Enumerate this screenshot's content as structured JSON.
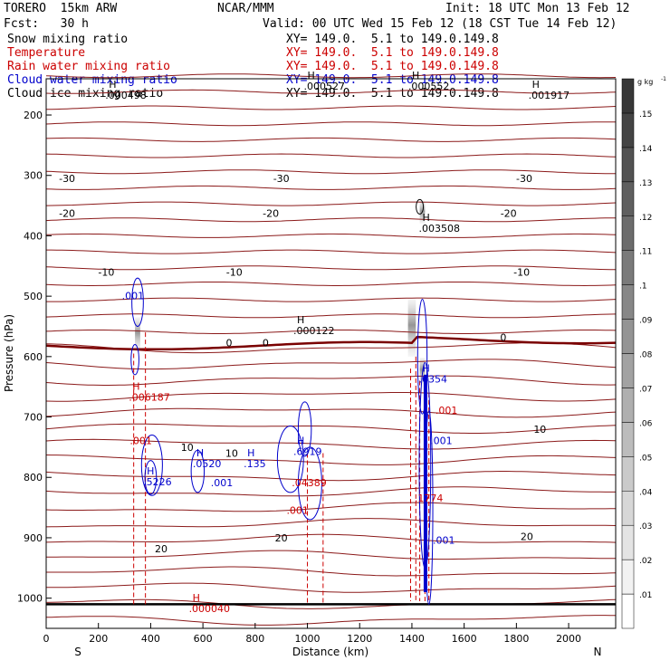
{
  "header": {
    "model": "TORERO  15km ARW",
    "center": "NCAR/MMM",
    "init": "Init: 18 UTC Mon 13 Feb 12",
    "fcst": "Fcst:   30 h",
    "valid": "Valid: 00 UTC Wed 15 Feb 12 (18 CST Tue 14 Feb 12)"
  },
  "legend": [
    {
      "name": "Snow mixing ratio",
      "xy": "XY= 149.0.  5.1 to 149.0.149.8",
      "color": "#000000"
    },
    {
      "name": "Temperature",
      "xy": "XY= 149.0.  5.1 to 149.0.149.8",
      "color": "#cc0000"
    },
    {
      "name": "Rain water mixing ratio",
      "xy": "XY= 149.0.  5.1 to 149.0.149.8",
      "color": "#cc0000"
    },
    {
      "name": "Cloud water mixing ratio",
      "xy": "XY= 149.0.  5.1 to 149.0.149.8",
      "color": "#0000cc"
    },
    {
      "name": "Cloud ice mixing ratio",
      "xy": "XY= 149.0.  5.1 to 149.0.149.8",
      "color": "#000000"
    }
  ],
  "colors": {
    "temperature": "#8b1a1a",
    "freezing": "#7a0000",
    "rain": "#cc0000",
    "cloud_water": "#0000cc",
    "label": "#000000"
  },
  "chart_data": {
    "type": "contour",
    "xlabel": "Distance (km)",
    "ylabel": "Pressure (hPa)",
    "xlim": [
      0,
      2180
    ],
    "ylim": [
      1050,
      140
    ],
    "x_ticks": [
      0,
      200,
      400,
      600,
      800,
      1000,
      1200,
      1400,
      1600,
      1800,
      2000
    ],
    "y_ticks": [
      200,
      300,
      400,
      500,
      600,
      700,
      800,
      900,
      1000
    ],
    "x_ends": {
      "left": "S",
      "right": "N"
    },
    "colorbar": {
      "unit": "g kg",
      "unit_exponent": "-1",
      "ticks": [
        ".01",
        ".02",
        ".03",
        ".04",
        ".05",
        ".06",
        ".07",
        ".08",
        ".09",
        ".1",
        ".11",
        ".12",
        ".13",
        ".14",
        ".15"
      ]
    },
    "temperature_labels": [
      {
        "label": "-30",
        "x": 80,
        "p": 305
      },
      {
        "label": "-30",
        "x": 900,
        "p": 305
      },
      {
        "label": "-30",
        "x": 1830,
        "p": 305
      },
      {
        "label": "-20",
        "x": 80,
        "p": 363
      },
      {
        "label": "-20",
        "x": 860,
        "p": 363
      },
      {
        "label": "-20",
        "x": 1770,
        "p": 363
      },
      {
        "label": "-10",
        "x": 230,
        "p": 460
      },
      {
        "label": "-10",
        "x": 720,
        "p": 460
      },
      {
        "label": "-10",
        "x": 1820,
        "p": 460
      },
      {
        "label": "0",
        "x": 700,
        "p": 577
      },
      {
        "label": "0",
        "x": 840,
        "p": 577
      },
      {
        "label": "0",
        "x": 1750,
        "p": 568
      },
      {
        "label": "10",
        "x": 540,
        "p": 750
      },
      {
        "label": "10",
        "x": 710,
        "p": 760
      },
      {
        "label": "10",
        "x": 1890,
        "p": 720
      },
      {
        "label": "20",
        "x": 440,
        "p": 918
      },
      {
        "label": "20",
        "x": 900,
        "p": 900
      },
      {
        "label": "20",
        "x": 1840,
        "p": 898
      }
    ],
    "extrema": [
      {
        "marker": "H",
        "value": ".000498",
        "x": 240,
        "p": 155,
        "color": "#000000"
      },
      {
        "marker": "H",
        "value": ".000527",
        "x": 1000,
        "p": 140,
        "color": "#000000"
      },
      {
        "marker": "H",
        "value": ".000552",
        "x": 1400,
        "p": 140,
        "color": "#000000"
      },
      {
        "marker": "H",
        "value": ".001917",
        "x": 1860,
        "p": 155,
        "color": "#000000"
      },
      {
        "marker": "H",
        "value": ".003508",
        "x": 1440,
        "p": 375,
        "color": "#000000"
      },
      {
        "marker": "H",
        "value": ".000122",
        "x": 960,
        "p": 545,
        "color": "#000000"
      },
      {
        "marker": "H",
        "value": ".006187",
        "x": 330,
        "p": 655,
        "color": "#cc0000"
      },
      {
        "marker": "H",
        "value": ".000040",
        "x": 560,
        "p": 1005,
        "color": "#cc0000"
      },
      {
        "marker": "H",
        "value": ".5226",
        "x": 385,
        "p": 795,
        "color": "#0000cc"
      },
      {
        "marker": "H",
        "value": ".0520",
        "x": 575,
        "p": 765,
        "color": "#0000cc"
      },
      {
        "marker": "H",
        "value": ".135",
        "x": 770,
        "p": 765,
        "color": "#0000cc"
      },
      {
        "marker": "H",
        "value": ".6919",
        "x": 960,
        "p": 745,
        "color": "#0000cc"
      },
      {
        "marker": "H",
        "value": ".6354",
        "x": 1440,
        "p": 625,
        "color": "#0000cc"
      }
    ],
    "contour_labels": [
      {
        "text": ".001",
        "x": 290,
        "p": 505,
        "color": "#0000cc"
      },
      {
        "text": ".001",
        "x": 630,
        "p": 815,
        "color": "#0000cc"
      },
      {
        "text": ".001",
        "x": 1490,
        "p": 695,
        "color": "#cc0000"
      },
      {
        "text": ".001",
        "x": 1470,
        "p": 745,
        "color": "#0000cc"
      },
      {
        "text": ".001",
        "x": 1480,
        "p": 910,
        "color": "#0000cc"
      },
      {
        "text": ".001",
        "x": 320,
        "p": 745,
        "color": "#cc0000"
      },
      {
        "text": ".001",
        "x": 920,
        "p": 860,
        "color": "#cc0000"
      },
      {
        "text": ".04389",
        "x": 940,
        "p": 815,
        "color": "#cc0000"
      },
      {
        "text": ".1774",
        "x": 1410,
        "p": 840,
        "color": "#cc0000"
      }
    ]
  }
}
